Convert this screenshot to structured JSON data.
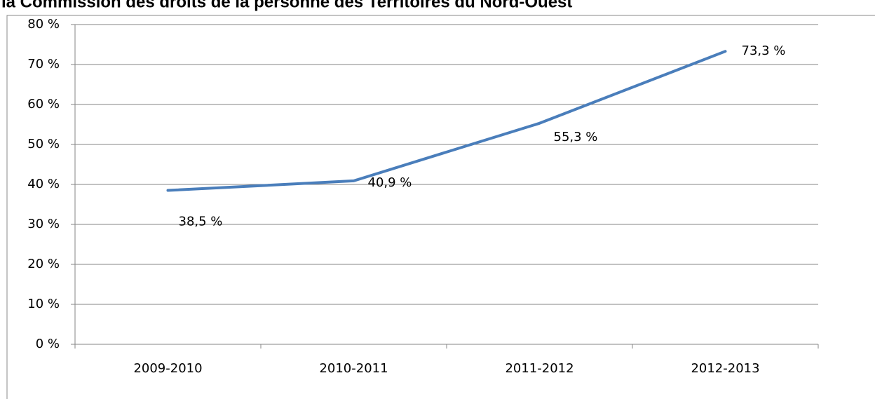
{
  "chart_data": {
    "type": "line",
    "title": "la Commission des droits de la personne des Territoires du Nord-Ouest",
    "categories": [
      "2009-2010",
      "2010-2011",
      "2011-2012",
      "2012-2013"
    ],
    "values": [
      38.5,
      40.9,
      55.3,
      73.3
    ],
    "value_labels": [
      "38,5 %",
      "40,9 %",
      "55,3 %",
      "73,3 %"
    ],
    "color": "#4a7ebb",
    "ylim": [
      0,
      80
    ],
    "yticks": [
      {
        "value": 0,
        "label": "0 %"
      },
      {
        "value": 10,
        "label": "10 %"
      },
      {
        "value": 20,
        "label": "20 %"
      },
      {
        "value": 30,
        "label": "30 %"
      },
      {
        "value": 40,
        "label": "40 %"
      },
      {
        "value": 50,
        "label": "50 %"
      },
      {
        "value": 60,
        "label": "60 %"
      },
      {
        "value": 70,
        "label": "70 %"
      },
      {
        "value": 80,
        "label": "80 %"
      }
    ],
    "grid": true
  }
}
